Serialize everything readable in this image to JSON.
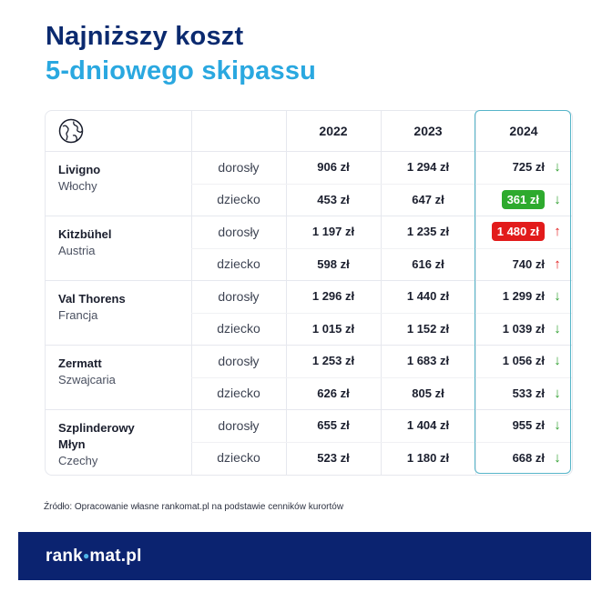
{
  "title": {
    "line1": "Najniższy koszt",
    "line2": "5-dniowego skipassu"
  },
  "header": {
    "icon": "globe-icon",
    "years": [
      "2022",
      "2023",
      "2024"
    ]
  },
  "resorts": [
    {
      "name": "Livigno",
      "country": "Włochy",
      "rows": [
        {
          "type": "dorosły",
          "v2022": "906 zł",
          "v2023": "1 294 zł",
          "v2024": "725 zł",
          "trend": "down",
          "highlight": ""
        },
        {
          "type": "dziecko",
          "v2022": "453 zł",
          "v2023": "647 zł",
          "v2024": "361 zł",
          "trend": "down",
          "highlight": "green"
        }
      ]
    },
    {
      "name": "Kitzbühel",
      "country": "Austria",
      "rows": [
        {
          "type": "dorosły",
          "v2022": "1 197 zł",
          "v2023": "1 235 zł",
          "v2024": "1 480 zł",
          "trend": "up",
          "highlight": "red"
        },
        {
          "type": "dziecko",
          "v2022": "598 zł",
          "v2023": "616 zł",
          "v2024": "740 zł",
          "trend": "up",
          "highlight": ""
        }
      ]
    },
    {
      "name": "Val Thorens",
      "country": "Francja",
      "rows": [
        {
          "type": "dorosły",
          "v2022": "1 296 zł",
          "v2023": "1 440 zł",
          "v2024": "1 299 zł",
          "trend": "down",
          "highlight": ""
        },
        {
          "type": "dziecko",
          "v2022": "1 015 zł",
          "v2023": "1 152 zł",
          "v2024": "1 039 zł",
          "trend": "down",
          "highlight": ""
        }
      ]
    },
    {
      "name": "Zermatt",
      "country": "Szwajcaria",
      "rows": [
        {
          "type": "dorosły",
          "v2022": "1 253 zł",
          "v2023": "1 683 zł",
          "v2024": "1 056 zł",
          "trend": "down",
          "highlight": ""
        },
        {
          "type": "dziecko",
          "v2022": "626 zł",
          "v2023": "805 zł",
          "v2024": "533 zł",
          "trend": "down",
          "highlight": ""
        }
      ]
    },
    {
      "name": "Szplinderowy Młyn",
      "country": "Czechy",
      "rows": [
        {
          "type": "dorosły",
          "v2022": "655 zł",
          "v2023": "1 404 zł",
          "v2024": "955 zł",
          "trend": "down",
          "highlight": ""
        },
        {
          "type": "dziecko",
          "v2022": "523 zł",
          "v2023": "1 180 zł",
          "v2024": "668 zł",
          "trend": "down",
          "highlight": ""
        }
      ]
    }
  ],
  "source": "Źródło: Opracowanie własne rankomat.pl na podstawie cenników kurortów",
  "footer": {
    "logo_left": "rank",
    "logo_dot": "●",
    "logo_right": "mat.pl"
  },
  "colors": {
    "navy": "#0b2370",
    "accent": "#2aa8e0",
    "green": "#2eaa2e",
    "red": "#e21b1b"
  }
}
